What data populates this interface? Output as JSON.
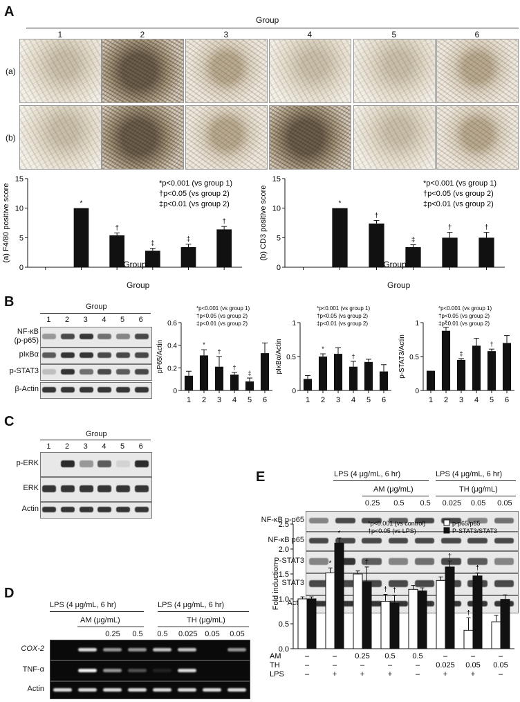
{
  "panels": {
    "A": "A",
    "B": "B",
    "C": "C",
    "D": "D",
    "E": "E"
  },
  "panelA": {
    "header": "Group",
    "groups": [
      "1",
      "2",
      "3",
      "4",
      "5",
      "6"
    ],
    "row_labels": [
      "(a)",
      "(b)"
    ]
  },
  "panelB": {
    "header": "Group",
    "lanes": [
      "1",
      "2",
      "3",
      "4",
      "5",
      "6"
    ],
    "rows": [
      "NF-κB\n(p-p65)",
      "pIκBα",
      "p-STAT3",
      "β-Actin"
    ]
  },
  "panelC": {
    "header": "Group",
    "lanes": [
      "1",
      "2",
      "3",
      "4",
      "5",
      "6"
    ],
    "rows": [
      "p-ERK",
      "ERK",
      "Actin"
    ]
  },
  "panelD": {
    "lps_label": "LPS (4 μg/mL, 6 hr)",
    "am_label": "AM (μg/mL)",
    "th_label": "TH (μg/mL)",
    "doses": [
      "0.25",
      "0.5",
      "0.5",
      "0.025",
      "0.05",
      "0.05"
    ],
    "rows": [
      "COX-2",
      "TNF-α",
      "Actin"
    ]
  },
  "panelE": {
    "lps_label": "LPS (4 μg/mL, 6 hr)",
    "am_label": "AM (μg/mL)",
    "th_label": "TH (μg/mL)",
    "doses": [
      "0.25",
      "0.5",
      "0.5",
      "0.025",
      "0.05",
      "0.05"
    ],
    "rows": [
      "NF-κB p-p65",
      "NF-κB p65",
      "P-STAT3",
      "STAT3",
      "Actin"
    ]
  },
  "chart_data": [
    {
      "type": "bar",
      "ylabel": "(a) F4/80 positive score",
      "xlabel": "Group",
      "categories": [
        "1",
        "2",
        "3",
        "4",
        "5",
        "6"
      ],
      "values": [
        0,
        10,
        5.4,
        2.8,
        3.4,
        6.4
      ],
      "errors": [
        0,
        0,
        0.4,
        0.4,
        0.5,
        0.5
      ],
      "marks": [
        "",
        "*",
        "†",
        "‡",
        "‡",
        "†"
      ],
      "ylim": [
        0,
        15
      ],
      "yticks": [
        0,
        5,
        10,
        15
      ],
      "legend": [
        "*p<0.001 (vs group 1)",
        "†p<0.05 (vs group 2)",
        "‡p<0.01 (vs group 2)"
      ]
    },
    {
      "type": "bar",
      "ylabel": "(b) CD3 positive score",
      "xlabel": "Group",
      "categories": [
        "1",
        "2",
        "3",
        "4",
        "5",
        "6"
      ],
      "values": [
        0,
        10,
        7.4,
        3.4,
        5,
        5
      ],
      "errors": [
        0,
        0,
        0.5,
        0.4,
        0.9,
        0.9
      ],
      "marks": [
        "",
        "*",
        "†",
        "‡",
        "†",
        "†"
      ],
      "ylim": [
        0,
        15
      ],
      "yticks": [
        0,
        5,
        10,
        15
      ],
      "legend": [
        "*p<0.001 (vs group 1)",
        "†p<0.05 (vs group 2)",
        "‡p<0.01 (vs group 2)"
      ]
    },
    {
      "type": "bar",
      "ylabel": "pP65/Actin",
      "xlabel": "Group",
      "categories": [
        "1",
        "2",
        "3",
        "4",
        "5",
        "6"
      ],
      "values": [
        0.13,
        0.31,
        0.21,
        0.14,
        0.08,
        0.33
      ],
      "errors": [
        0.04,
        0.05,
        0.09,
        0.02,
        0.03,
        0.09
      ],
      "marks": [
        "",
        "*",
        "†",
        "†",
        "‡",
        ""
      ],
      "ylim": [
        0,
        0.6
      ],
      "yticks": [
        0,
        0.2,
        0.4,
        0.6
      ],
      "legend": [
        "*p<0.001 (vs group 1)",
        "†p<0.05 (vs group 2)",
        "‡p<0.01 (vs group 2)"
      ]
    },
    {
      "type": "bar",
      "ylabel": "pIκBα/Actin",
      "xlabel": "Group",
      "categories": [
        "1",
        "2",
        "3",
        "4",
        "5",
        "6"
      ],
      "values": [
        0.17,
        0.5,
        0.54,
        0.35,
        0.42,
        0.28
      ],
      "errors": [
        0.05,
        0.04,
        0.09,
        0.08,
        0.04,
        0.1
      ],
      "marks": [
        "",
        "*",
        "",
        "†",
        "",
        ""
      ],
      "ylim": [
        0,
        1.0
      ],
      "yticks": [
        0,
        0.5,
        1.0
      ],
      "legend": [
        "*p<0.001 (vs group 1)",
        "†p<0.05 (vs group 2)",
        "‡p<0.01 (vs group 2)"
      ]
    },
    {
      "type": "bar",
      "ylabel": "p-STAT3/Actin",
      "xlabel": "Group",
      "categories": [
        "1",
        "2",
        "3",
        "4",
        "5",
        "6"
      ],
      "values": [
        0.29,
        0.88,
        0.45,
        0.66,
        0.58,
        0.7
      ],
      "errors": [
        0,
        0.05,
        0.02,
        0.11,
        0.03,
        0.11
      ],
      "marks": [
        "",
        "*",
        "‡",
        "",
        "†",
        ""
      ],
      "ylim": [
        0,
        1.0
      ],
      "yticks": [
        0,
        0.5,
        1.0
      ],
      "legend": [
        "*p<0.001 (vs group 1)",
        "†p<0.05 (vs group 2)",
        "‡p<0.01 (vs group 2)"
      ]
    },
    {
      "type": "bar",
      "ylabel": "Fold induction",
      "series": [
        {
          "name": "p-p65/p65",
          "values": [
            1.0,
            1.52,
            1.5,
            0.95,
            1.19,
            1.37,
            0.37,
            0.54
          ],
          "errors": [
            0.04,
            0.1,
            0.06,
            0.14,
            0.08,
            0.07,
            0.25,
            0.13
          ],
          "marks": [
            "",
            "*",
            "",
            "†",
            "",
            "",
            "†",
            ""
          ]
        },
        {
          "name": "P-STAT3/STAT3",
          "values": [
            1.0,
            2.12,
            1.34,
            0.91,
            1.16,
            1.64,
            1.46,
            0.99
          ],
          "errors": [
            0.04,
            0.1,
            0.3,
            0.16,
            0.06,
            0.12,
            0.06,
            0.09
          ],
          "marks": [
            "",
            "*",
            "†",
            "†",
            "",
            "†",
            "†",
            ""
          ]
        }
      ],
      "ylim": [
        0,
        2.5
      ],
      "yticks": [
        0,
        0.5,
        1.0,
        1.5,
        2.0,
        2.5
      ],
      "legend": [
        "*p<0.001 (vs control)",
        "†p<0.05 (vs LPS)"
      ],
      "conditions": {
        "AM": [
          "–",
          "–",
          "0.25",
          "0.5",
          "0.5",
          "–",
          "–",
          "–"
        ],
        "TH": [
          "–",
          "–",
          "–",
          "–",
          "–",
          "0.025",
          "0.05",
          "0.05"
        ],
        "LPS": [
          "–",
          "+",
          "+",
          "+",
          "–",
          "+",
          "+",
          "–"
        ]
      }
    }
  ]
}
